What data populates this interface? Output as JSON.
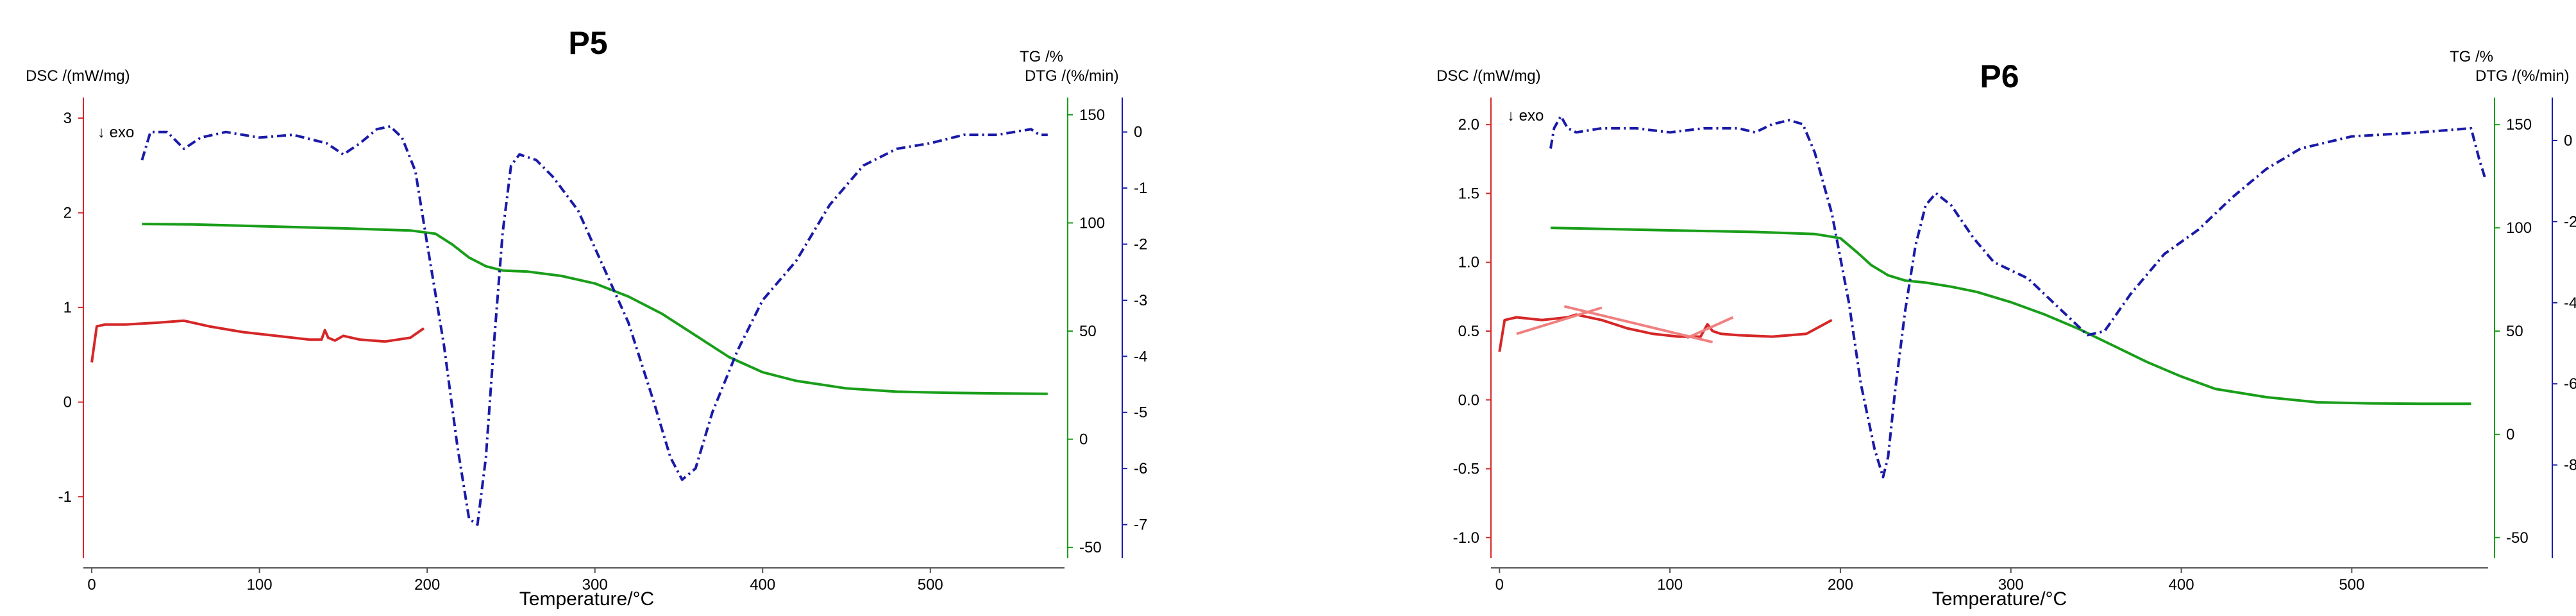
{
  "chart_data": [
    {
      "type": "line",
      "title": "P5",
      "xlabel": "Temperature/°C",
      "xlim": [
        -5,
        580
      ],
      "xticks": [
        0,
        100,
        200,
        300,
        400,
        500
      ],
      "annotation": "↓ exo",
      "axes": {
        "dsc": {
          "label": "DSC /(mW/mg)",
          "lim": [
            -1.65,
            3.15
          ],
          "ticks": [
            "-1",
            "0",
            "1",
            "2",
            "3"
          ],
          "tick_values": [
            -1,
            0,
            1,
            2,
            3
          ],
          "color": "#d62728"
        },
        "tg": {
          "label": "TG /%",
          "lim": [
            -55,
            155
          ],
          "ticks": [
            "-50",
            "0",
            "50",
            "100",
            "150"
          ],
          "tick_values": [
            -50,
            0,
            50,
            100,
            150
          ],
          "color": "#1a9e1a"
        },
        "dtg": {
          "label": "DTG /(%/min)",
          "lim": [
            -7.6,
            0.5
          ],
          "ticks": [
            "-7",
            "-6",
            "-5",
            "-4",
            "-3",
            "-2",
            "-1",
            "0"
          ],
          "tick_values": [
            -7,
            -6,
            -5,
            -4,
            -3,
            -2,
            -1,
            0
          ],
          "color": "#1a1aa8"
        }
      },
      "series": [
        {
          "axis": "dsc",
          "color": "#d62728",
          "style": "solid",
          "x": [
            0,
            3,
            8,
            20,
            40,
            55,
            70,
            90,
            110,
            130,
            137,
            139,
            141,
            145,
            150,
            160,
            175,
            190,
            198
          ],
          "y": [
            0.42,
            0.8,
            0.82,
            0.82,
            0.84,
            0.86,
            0.8,
            0.74,
            0.7,
            0.66,
            0.66,
            0.76,
            0.68,
            0.65,
            0.7,
            0.66,
            0.64,
            0.68,
            0.78
          ]
        },
        {
          "axis": "tg",
          "color": "#1a9e1a",
          "style": "solid",
          "x": [
            30,
            60,
            100,
            150,
            190,
            205,
            215,
            225,
            235,
            245,
            260,
            280,
            300,
            320,
            340,
            360,
            380,
            400,
            420,
            450,
            480,
            510,
            540,
            570
          ],
          "y": [
            99.5,
            99.3,
            98.5,
            97.5,
            96.5,
            95,
            90,
            84,
            80,
            78,
            77.5,
            75.5,
            72,
            66,
            58,
            48,
            38,
            31,
            27,
            23.5,
            22,
            21.5,
            21.2,
            21
          ]
        },
        {
          "axis": "dtg",
          "color": "#1a1aa8",
          "style": "dashdot",
          "x": [
            30,
            35,
            45,
            55,
            65,
            80,
            100,
            120,
            140,
            150,
            160,
            170,
            178,
            185,
            193,
            200,
            210,
            218,
            225,
            230,
            235,
            240,
            245,
            250,
            255,
            265,
            275,
            290,
            305,
            320,
            335,
            345,
            352,
            360,
            370,
            385,
            400,
            420,
            440,
            460,
            480,
            500,
            520,
            540,
            560,
            565,
            570
          ],
          "y": [
            -0.5,
            0,
            0,
            -0.3,
            -0.1,
            0,
            -0.1,
            -0.05,
            -0.2,
            -0.4,
            -0.2,
            0.05,
            0.1,
            -0.1,
            -0.7,
            -2.0,
            -3.8,
            -5.6,
            -6.9,
            -7.0,
            -5.8,
            -3.7,
            -1.8,
            -0.6,
            -0.4,
            -0.5,
            -0.8,
            -1.4,
            -2.4,
            -3.4,
            -4.8,
            -5.8,
            -6.2,
            -6.0,
            -5.0,
            -3.9,
            -3.0,
            -2.3,
            -1.3,
            -0.6,
            -0.3,
            -0.2,
            -0.05,
            -0.05,
            0.05,
            -0.05,
            -0.05
          ]
        }
      ]
    },
    {
      "type": "line",
      "title": "P6",
      "xlabel": "Temperature/°C",
      "xlim": [
        -5,
        580
      ],
      "xticks": [
        0,
        100,
        200,
        300,
        400,
        500
      ],
      "annotation": "↓ exo",
      "axes": {
        "dsc": {
          "label": "DSC /(mW/mg)",
          "lim": [
            -1.15,
            2.15
          ],
          "ticks": [
            "-1.0",
            "-0.5",
            "0.0",
            "0.5",
            "1.0",
            "1.5",
            "2.0"
          ],
          "tick_values": [
            -1,
            -0.5,
            0,
            0.5,
            1,
            1.5,
            2
          ],
          "color": "#d62728"
        },
        "tg": {
          "label": "TG /%",
          "lim": [
            -60,
            160
          ],
          "ticks": [
            "-50",
            "0",
            "50",
            "100",
            "150"
          ],
          "tick_values": [
            -50,
            0,
            50,
            100,
            150
          ],
          "color": "#1a9e1a"
        },
        "dtg": {
          "label": "DTG /(%/min)",
          "lim": [
            -10.3,
            0.9
          ],
          "ticks": [
            "-8",
            "-6",
            "-4",
            "-2",
            "0"
          ],
          "tick_values": [
            -8,
            -6,
            -4,
            -2,
            0
          ],
          "color": "#1a1aa8"
        }
      },
      "series": [
        {
          "axis": "dsc",
          "color": "#d62728",
          "style": "solid",
          "x": [
            0,
            3,
            10,
            25,
            40,
            45,
            60,
            75,
            90,
            105,
            118,
            122,
            125,
            130,
            140,
            160,
            180,
            195
          ],
          "y": [
            0.35,
            0.58,
            0.6,
            0.58,
            0.6,
            0.62,
            0.58,
            0.52,
            0.48,
            0.46,
            0.46,
            0.55,
            0.5,
            0.48,
            0.47,
            0.46,
            0.48,
            0.58
          ]
        },
        {
          "axis": "dsc",
          "color": "#f08080",
          "style": "solid",
          "x": [
            10,
            60
          ],
          "y": [
            0.48,
            0.67
          ]
        },
        {
          "axis": "dsc",
          "color": "#f08080",
          "style": "solid",
          "x": [
            38,
            125
          ],
          "y": [
            0.68,
            0.42
          ]
        },
        {
          "axis": "dsc",
          "color": "#f08080",
          "style": "solid",
          "x": [
            110,
            137
          ],
          "y": [
            0.45,
            0.6
          ]
        },
        {
          "axis": "tg",
          "color": "#1a9e1a",
          "style": "solid",
          "x": [
            30,
            60,
            100,
            150,
            185,
            200,
            210,
            218,
            228,
            238,
            250,
            265,
            280,
            300,
            320,
            340,
            360,
            380,
            400,
            420,
            450,
            480,
            510,
            540,
            570
          ],
          "y": [
            100,
            99.5,
            98.8,
            98,
            97,
            95,
            88,
            82,
            77,
            74.5,
            73.5,
            71.5,
            69,
            64,
            58,
            51,
            43,
            35,
            28,
            22,
            18,
            15.5,
            15,
            14.8,
            14.8
          ]
        },
        {
          "axis": "dtg",
          "color": "#1a1aa8",
          "style": "dashdot",
          "x": [
            30,
            32,
            36,
            40,
            45,
            60,
            80,
            100,
            120,
            140,
            150,
            160,
            170,
            178,
            185,
            195,
            205,
            212,
            220,
            225,
            228,
            232,
            238,
            244,
            250,
            256,
            265,
            278,
            290,
            310,
            330,
            345,
            355,
            370,
            390,
            410,
            430,
            450,
            470,
            500,
            540,
            570,
            575,
            578
          ],
          "y": [
            -0.2,
            0.3,
            0.6,
            0.3,
            0.2,
            0.3,
            0.3,
            0.2,
            0.3,
            0.3,
            0.2,
            0.4,
            0.5,
            0.4,
            -0.3,
            -1.8,
            -4.0,
            -6.0,
            -7.6,
            -8.3,
            -7.8,
            -6.2,
            -4.2,
            -2.6,
            -1.6,
            -1.3,
            -1.6,
            -2.4,
            -3.0,
            -3.4,
            -4.2,
            -4.8,
            -4.7,
            -3.8,
            -2.8,
            -2.2,
            -1.4,
            -0.7,
            -0.2,
            0.1,
            0.2,
            0.3,
            -0.5,
            -0.9
          ]
        }
      ]
    }
  ]
}
